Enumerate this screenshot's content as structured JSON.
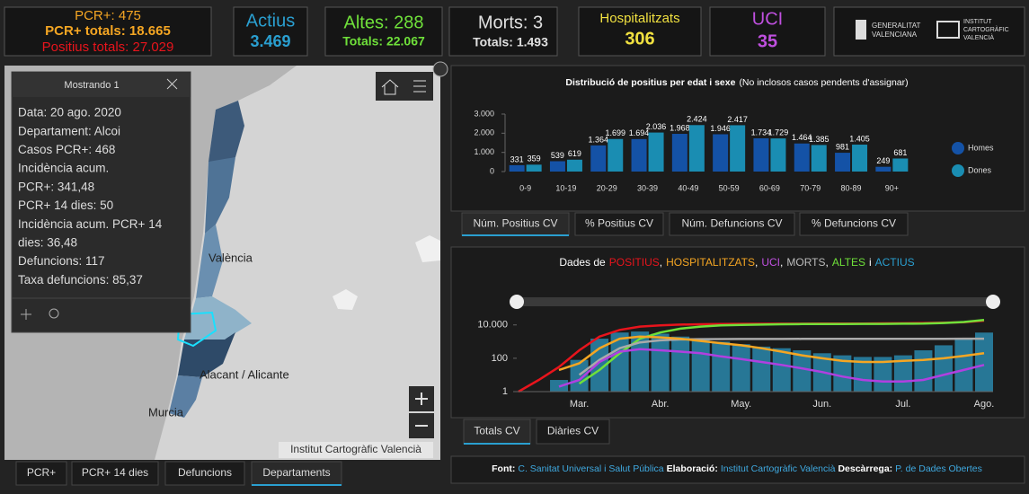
{
  "kpis": {
    "pcr": {
      "daily": "PCR+: 475",
      "total": "PCR+ totals: 18.665",
      "positius": "Positius totals: 27.029"
    },
    "actius": {
      "label": "Actius",
      "value": "3.469"
    },
    "altes": {
      "daily": "Altes: 288",
      "total": "Totals: 22.067"
    },
    "morts": {
      "daily": "Morts: 3",
      "total": "Totals: 1.493"
    },
    "hosp": {
      "label": "Hospitalitzats",
      "value": "306"
    },
    "uci": {
      "label": "UCI",
      "value": "35"
    },
    "logos": [
      "GENERALITAT",
      "VALENCIANA",
      "INSTITUT",
      "CARTOGRÀFIC",
      "VALENCIÀ"
    ]
  },
  "map": {
    "labels": [
      "València",
      "Alacant / Alicante",
      "Murcia"
    ],
    "attribution": "Institut Cartogràfic Valencià",
    "tabs": [
      {
        "label": "PCR+",
        "active": false
      },
      {
        "label": "PCR+ 14 dies",
        "active": false
      },
      {
        "label": "Defuncions",
        "active": false
      },
      {
        "label": "Departaments",
        "active": true
      }
    ],
    "popup": {
      "title": "Mostrando 1",
      "lines": [
        "Data: 20 ago. 2020",
        "Departament: Alcoi",
        "Casos PCR+: 468",
        "Incidència acum.",
        "PCR+: 341,48",
        "PCR+ 14 dies: 50",
        "Incidència acum. PCR+ 14",
        "dies: 36,48",
        "Defuncions: 117",
        "Taxa defuncions: 85,37"
      ]
    }
  },
  "chart_data": [
    {
      "type": "bar",
      "title": "Distribució de positius per edat i sexe",
      "subtitle": "(No inclosos casos pendents d'assignar)",
      "categories": [
        "0-9",
        "10-19",
        "20-29",
        "30-39",
        "40-49",
        "50-59",
        "60-69",
        "70-79",
        "80-89",
        "90+"
      ],
      "series": [
        {
          "name": "Homes",
          "color": "#1452a6",
          "values": [
            331,
            539,
            1364,
            1694,
            1968,
            1946,
            1734,
            1464,
            981,
            249
          ],
          "value_labels": [
            "331",
            "539",
            "1.364",
            "1.694",
            "1.968",
            "1.946",
            "1.734",
            "1.464",
            "981",
            "249"
          ]
        },
        {
          "name": "Dones",
          "color": "#1a8db2",
          "values": [
            359,
            619,
            1699,
            2036,
            2424,
            2417,
            1729,
            1385,
            1405,
            681
          ],
          "value_labels": [
            "359",
            "619",
            "1.699",
            "2.036",
            "2.424",
            "2.417",
            "1.729",
            "1.385",
            "1.405",
            "681"
          ]
        }
      ],
      "ylim": [
        0,
        3000
      ],
      "yticks": [
        0,
        {
          "value": 1000,
          "label": "1.000"
        },
        {
          "value": 2000,
          "label": "2.000"
        },
        {
          "value": 3000,
          "label": "3.000"
        }
      ]
    },
    {
      "type": "line",
      "title_segments": [
        {
          "text": "Dades de",
          "color": "#ffffff"
        },
        {
          "text": "POSITIUS",
          "color": "#e8141c"
        },
        {
          "text": ",",
          "color": "#ffffff"
        },
        {
          "text": "HOSPITALITZATS",
          "color": "#f5a623"
        },
        {
          "text": ",",
          "color": "#ffffff"
        },
        {
          "text": "UCI",
          "color": "#c050e0"
        },
        {
          "text": ",",
          "color": "#ffffff"
        },
        {
          "text": "MORTS",
          "color": "#bbbbbb"
        },
        {
          "text": ",",
          "color": "#ffffff"
        },
        {
          "text": "ALTES",
          "color": "#6fe03a"
        },
        {
          "text": "i",
          "color": "#ffffff"
        },
        {
          "text": "ACTIUS",
          "color": "#2a9fd0"
        }
      ],
      "categories": [
        null,
        null,
        null,
        "Mar.",
        null,
        null,
        null,
        "Abr.",
        null,
        null,
        null,
        "May.",
        null,
        null,
        null,
        "Jun.",
        null,
        null,
        null,
        "Jul.",
        null,
        null,
        null,
        "Ago."
      ],
      "log": true,
      "ylim": [
        1,
        80000
      ],
      "yticks": [
        1,
        100,
        {
          "value": 10000,
          "label": "10.000"
        }
      ],
      "series": [
        {
          "name": "ACTIUS",
          "color": "#2a8fb5",
          "style": "bar",
          "values": [
            null,
            null,
            5,
            80,
            1500,
            3500,
            4000,
            3000,
            2000,
            1500,
            1000,
            700,
            500,
            400,
            300,
            200,
            150,
            120,
            120,
            150,
            300,
            600,
            1500,
            3469
          ]
        },
        {
          "name": "POSITIUS",
          "color": "#e8141c",
          "style": "line",
          "values": [
            1,
            5,
            30,
            300,
            2000,
            5000,
            8000,
            9500,
            10500,
            11000,
            11300,
            11500,
            11700,
            11800,
            11900,
            12000,
            12100,
            12200,
            12400,
            12600,
            13000,
            13500,
            14500,
            18000
          ]
        },
        {
          "name": "ALTES",
          "color": "#6fe03a",
          "style": "line",
          "values": [
            null,
            null,
            null,
            3,
            20,
            200,
            1500,
            3500,
            6000,
            8000,
            9500,
            10000,
            10500,
            11000,
            11200,
            11300,
            11400,
            11500,
            11600,
            11800,
            12000,
            13000,
            15000,
            20000
          ]
        },
        {
          "name": "MORTS",
          "color": "#aaaaaa",
          "style": "line",
          "values": [
            null,
            null,
            null,
            10,
            80,
            400,
            900,
            1200,
            1350,
            1400,
            1420,
            1430,
            1440,
            1445,
            1450,
            1450,
            1450,
            1455,
            1460,
            1465,
            1470,
            1475,
            1485,
            1493
          ]
        },
        {
          "name": "HOSPITALITZATS",
          "color": "#f5a623",
          "style": "line",
          "values": [
            null,
            null,
            20,
            50,
            400,
            1500,
            2000,
            1800,
            1500,
            1100,
            800,
            600,
            400,
            250,
            150,
            100,
            70,
            60,
            60,
            70,
            80,
            100,
            140,
            200
          ]
        },
        {
          "name": "UCI",
          "color": "#b040e0",
          "style": "line",
          "values": [
            null,
            null,
            2,
            5,
            60,
            250,
            350,
            300,
            250,
            200,
            130,
            90,
            60,
            40,
            25,
            15,
            8,
            5,
            4,
            4,
            5,
            10,
            20,
            40
          ]
        }
      ]
    }
  ],
  "bar_tabs": [
    {
      "label": "Núm. Positius CV",
      "active": true
    },
    {
      "label": "% Positius CV",
      "active": false
    },
    {
      "label": "Núm. Defuncions CV",
      "active": false
    },
    {
      "label": "% Defuncions CV",
      "active": false
    }
  ],
  "line_tabs": [
    {
      "label": "Totals CV",
      "active": true
    },
    {
      "label": "Diàries CV",
      "active": false
    }
  ],
  "footer": [
    {
      "text": "Font:",
      "link": false
    },
    {
      "text": "C. Sanitat Universal i Salut Pública",
      "link": true
    },
    {
      "text": "Elaboració:",
      "link": false
    },
    {
      "text": "Institut Cartogràfic Valencià",
      "link": true
    },
    {
      "text": "Descàrrega:",
      "link": false
    },
    {
      "text": "P. de Dades Obertes",
      "link": true
    }
  ]
}
